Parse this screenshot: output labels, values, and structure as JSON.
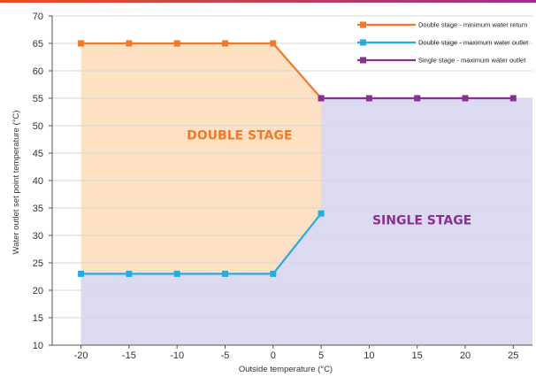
{
  "colors": {
    "top_stripe_left": "#e8501f",
    "top_stripe_right": "#9b2d8e",
    "double_min_return": "#f07a2a",
    "double_max_outlet": "#29abe2",
    "single_max_outlet": "#8b2e92",
    "double_stage_fill": "#fde1c2",
    "single_stage_fill": "#dcdaf0",
    "grid": "#d6d6d6",
    "axis": "#555555"
  },
  "chart_data": {
    "type": "line",
    "xlabel": "Outside temperature (°C)",
    "ylabel": "Water outlet set point temperature (°C)",
    "xlim": [
      -23,
      27
    ],
    "ylim": [
      10,
      70
    ],
    "xticks": [
      "-20",
      "-15",
      "-10",
      "-5",
      "0",
      "5",
      "10",
      "15",
      "20",
      "25"
    ],
    "yticks": [
      "10",
      "15",
      "20",
      "25",
      "30",
      "35",
      "40",
      "45",
      "50",
      "55",
      "60",
      "65",
      "70"
    ],
    "grid": "horizontal",
    "legend_position": "top-right",
    "series": [
      {
        "name": "Double stage - minimum water return",
        "color_key": "double_min_return",
        "points": [
          [
            -20,
            65
          ],
          [
            -15,
            65
          ],
          [
            -10,
            65
          ],
          [
            -5,
            65
          ],
          [
            0,
            65
          ],
          [
            5,
            55
          ]
        ]
      },
      {
        "name": "Double stage - maximum water outlet",
        "color_key": "double_max_outlet",
        "points": [
          [
            -20,
            23
          ],
          [
            -15,
            23
          ],
          [
            -10,
            23
          ],
          [
            -5,
            23
          ],
          [
            0,
            23
          ],
          [
            5,
            34
          ]
        ]
      },
      {
        "name": "Single stage - maximum water outlet",
        "color_key": "single_max_outlet",
        "points": [
          [
            5,
            55
          ],
          [
            10,
            55
          ],
          [
            15,
            55
          ],
          [
            20,
            55
          ],
          [
            25,
            55
          ]
        ]
      }
    ],
    "regions": [
      {
        "label": "DOUBLE STAGE",
        "color_key": "double_stage_fill",
        "label_color_key": "double_min_return",
        "label_anchor": [
          -3.5,
          47.5
        ],
        "polygon": [
          [
            -20,
            65
          ],
          [
            0,
            65
          ],
          [
            5,
            55
          ],
          [
            5,
            34
          ],
          [
            0,
            23
          ],
          [
            -20,
            23
          ]
        ]
      },
      {
        "label": "SINGLE STAGE",
        "color_key": "single_stage_fill",
        "label_color_key": "single_max_outlet",
        "label_anchor": [
          15.5,
          32
        ],
        "polygon": [
          [
            -20,
            23
          ],
          [
            0,
            23
          ],
          [
            5,
            34
          ],
          [
            5,
            55
          ],
          [
            27,
            55
          ],
          [
            27,
            10
          ],
          [
            -20,
            10
          ]
        ]
      }
    ]
  }
}
